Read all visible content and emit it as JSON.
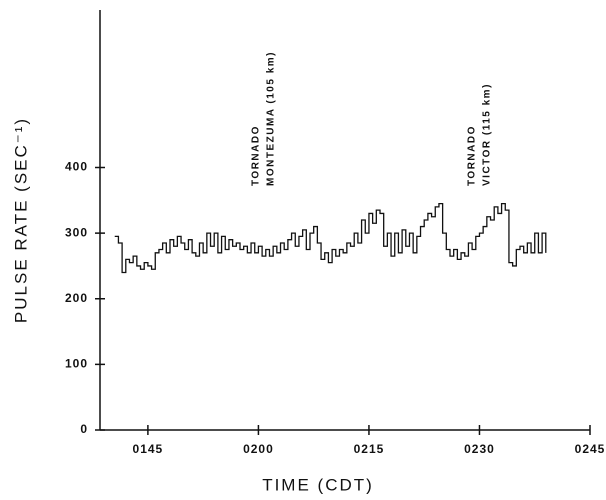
{
  "chart_data": {
    "type": "step-line",
    "y_label": "PULSE RATE (SEC⁻¹)",
    "x_label": "TIME (CDT)",
    "annotations": [
      "TORNADO",
      "MONTEZUMA (105 km)",
      "TORNADO",
      "VICTOR (115 km)"
    ],
    "xlim": [
      98.5,
      165
    ],
    "xticks": [
      {
        "value": 105,
        "label": "0145"
      },
      {
        "value": 120,
        "label": "0200"
      },
      {
        "value": 135,
        "label": "0215"
      },
      {
        "value": 150,
        "label": "0230"
      },
      {
        "value": 165,
        "label": "0245"
      }
    ],
    "ylim": [
      0,
      640
    ],
    "yticks": [
      0,
      100,
      200,
      300,
      400
    ],
    "color": "#111111",
    "x": [
      100.5,
      101,
      101.5,
      102,
      102.5,
      103,
      103.5,
      104,
      104.5,
      105,
      105.5,
      106,
      106.5,
      107,
      107.5,
      108,
      108.5,
      109,
      109.5,
      110,
      110.5,
      111,
      111.5,
      112,
      112.5,
      113,
      113.5,
      114,
      114.5,
      115,
      115.5,
      116,
      116.5,
      117,
      117.5,
      118,
      118.5,
      119,
      119.5,
      120,
      120.5,
      121,
      121.5,
      122,
      122.5,
      123,
      123.5,
      124,
      124.5,
      125,
      125.5,
      126,
      126.5,
      127,
      127.5,
      128,
      128.5,
      129,
      129.5,
      130,
      130.5,
      131,
      131.5,
      132,
      132.5,
      133,
      133.5,
      134,
      134.5,
      135,
      135.5,
      136,
      136.5,
      137,
      137.5,
      138,
      138.5,
      139,
      139.5,
      140,
      140.5,
      141,
      141.5,
      142,
      142.5,
      143,
      143.5,
      144,
      144.5,
      145,
      145.5,
      146,
      146.5,
      147,
      147.5,
      148,
      148.5,
      149,
      149.5,
      150,
      150.5,
      151,
      151.5,
      152,
      152.5,
      153,
      153.5,
      154,
      154.5,
      155,
      155.5,
      156,
      156.5,
      157,
      157.5,
      158,
      158.5,
      159
    ],
    "values": [
      295,
      285,
      240,
      260,
      255,
      265,
      250,
      245,
      255,
      250,
      245,
      270,
      275,
      285,
      270,
      290,
      280,
      295,
      285,
      275,
      290,
      270,
      265,
      285,
      270,
      300,
      280,
      300,
      270,
      295,
      275,
      290,
      280,
      285,
      275,
      280,
      270,
      285,
      270,
      280,
      265,
      275,
      265,
      280,
      270,
      285,
      275,
      290,
      300,
      280,
      295,
      305,
      275,
      300,
      310,
      285,
      260,
      270,
      255,
      275,
      265,
      275,
      270,
      285,
      280,
      300,
      285,
      320,
      300,
      330,
      315,
      335,
      330,
      280,
      300,
      265,
      300,
      270,
      305,
      280,
      300,
      270,
      295,
      310,
      320,
      330,
      325,
      340,
      345,
      300,
      275,
      265,
      275,
      260,
      270,
      265,
      285,
      275,
      295,
      300,
      310,
      325,
      320,
      340,
      330,
      345,
      335,
      255,
      250,
      275,
      280,
      270,
      285,
      270,
      300,
      270,
      300,
      270
    ]
  }
}
